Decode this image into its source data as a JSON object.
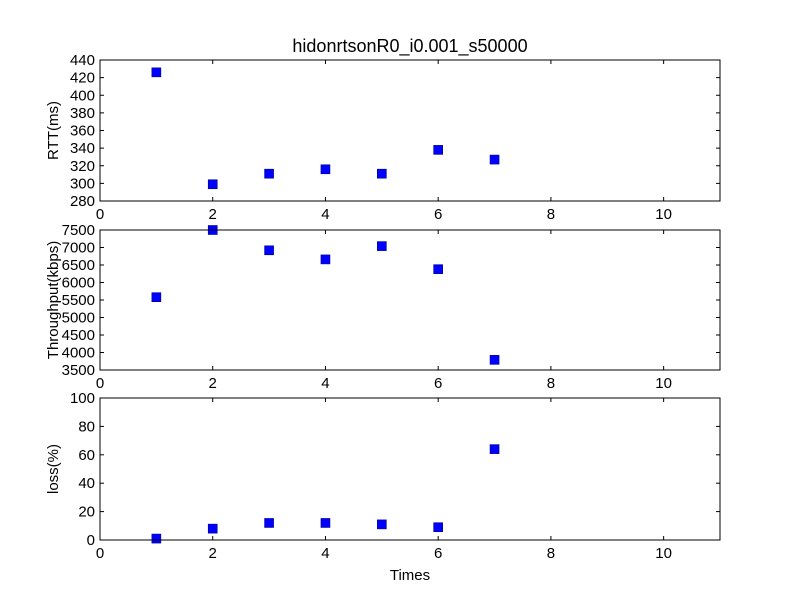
{
  "title": "hidonrtsonR0_i0.001_s50000",
  "chart_data": [
    {
      "type": "scatter",
      "title": "hidonrtsonR0_i0.001_s50000",
      "ylabel": "RTT(ms)",
      "xlabel": "",
      "xlim": [
        0,
        11
      ],
      "ylim": [
        280,
        440
      ],
      "xticks": [
        0,
        2,
        4,
        6,
        8,
        10
      ],
      "yticks": [
        280,
        300,
        320,
        340,
        360,
        380,
        400,
        420,
        440
      ],
      "marker": "square",
      "color": "#0000ff",
      "grid": false,
      "series": [
        {
          "x": [
            1,
            2,
            3,
            4,
            5,
            6,
            7
          ],
          "y": [
            426,
            299,
            311,
            316,
            311,
            338,
            327
          ]
        }
      ]
    },
    {
      "type": "scatter",
      "title": "",
      "ylabel": "Throughput(kbps)",
      "xlabel": "",
      "xlim": [
        0,
        11
      ],
      "ylim": [
        3500,
        7500
      ],
      "xticks": [
        0,
        2,
        4,
        6,
        8,
        10
      ],
      "yticks": [
        3500,
        4000,
        4500,
        5000,
        5500,
        6000,
        6500,
        7000,
        7500
      ],
      "marker": "square",
      "color": "#0000ff",
      "grid": false,
      "series": [
        {
          "x": [
            1,
            2,
            3,
            4,
            5,
            6,
            7
          ],
          "y": [
            5580,
            7500,
            6920,
            6660,
            7040,
            6380,
            3790
          ]
        }
      ]
    },
    {
      "type": "scatter",
      "title": "",
      "ylabel": "loss(%)",
      "xlabel": "Times",
      "xlim": [
        0,
        11
      ],
      "ylim": [
        0,
        100
      ],
      "xticks": [
        0,
        2,
        4,
        6,
        8,
        10
      ],
      "yticks": [
        0,
        20,
        40,
        60,
        80,
        100
      ],
      "marker": "square",
      "color": "#0000ff",
      "grid": false,
      "series": [
        {
          "x": [
            1,
            2,
            3,
            4,
            5,
            6,
            7
          ],
          "y": [
            1,
            8,
            12,
            12,
            11,
            9,
            64
          ]
        }
      ]
    }
  ]
}
